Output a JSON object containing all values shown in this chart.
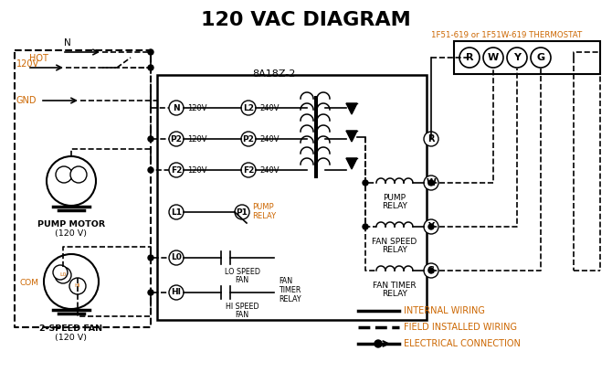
{
  "title": "120 VAC DIAGRAM",
  "title_fontsize": 16,
  "title_fontweight": "bold",
  "bg_color": "#ffffff",
  "text_color": "#000000",
  "orange_color": "#cc6600",
  "thermostat_label": "1F51-619 or 1F51W-619 THERMOSTAT",
  "control_box_label": "8A18Z-2",
  "legend_internal": "INTERNAL WIRING",
  "legend_field": "FIELD INSTALLED WIRING",
  "legend_elec": "ELECTRICAL CONNECTION"
}
